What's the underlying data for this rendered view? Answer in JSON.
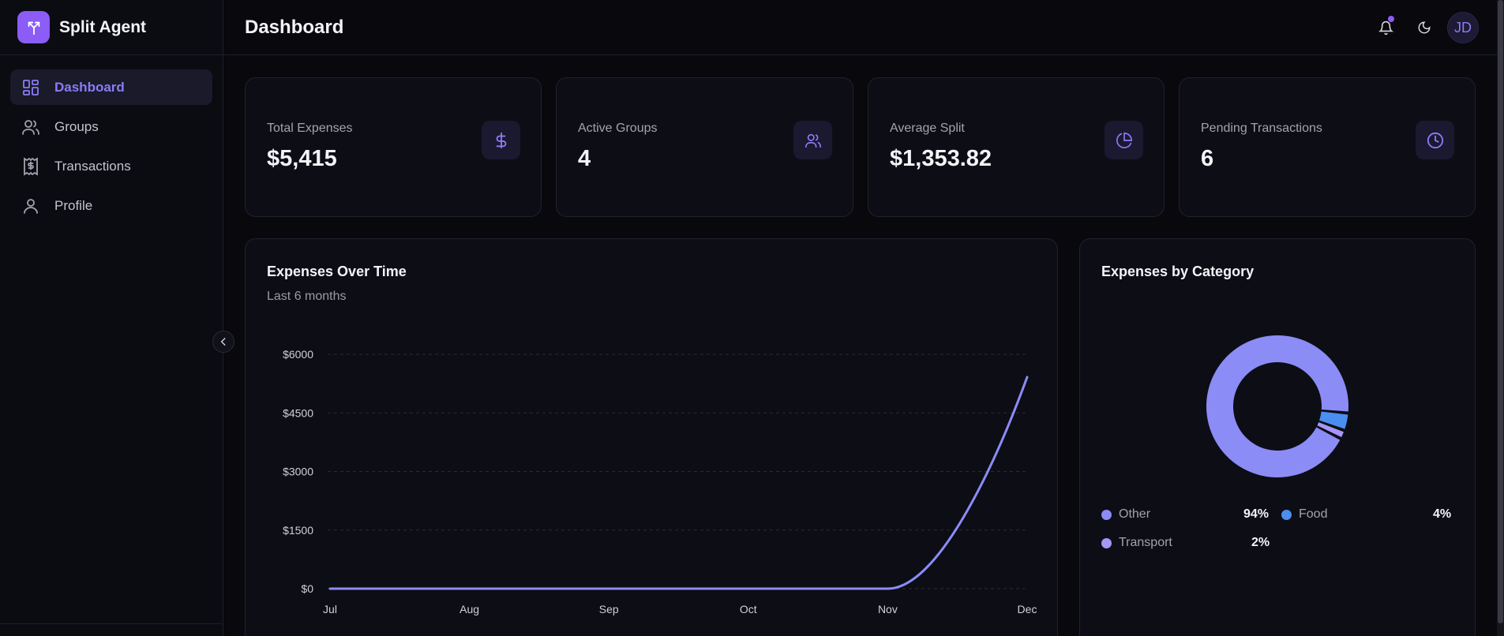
{
  "app": {
    "name": "Split Agent",
    "accent": "#8b5cf6"
  },
  "sidebar": {
    "items": [
      {
        "label": "Dashboard",
        "icon": "dashboard-icon",
        "active": true
      },
      {
        "label": "Groups",
        "icon": "users-icon",
        "active": false
      },
      {
        "label": "Transactions",
        "icon": "receipt-icon",
        "active": false
      },
      {
        "label": "Profile",
        "icon": "user-icon",
        "active": false
      }
    ]
  },
  "header": {
    "title": "Dashboard",
    "avatar_initials": "JD",
    "has_notification": true
  },
  "stats": [
    {
      "label": "Total Expenses",
      "value": "$5,415",
      "icon": "dollar-icon"
    },
    {
      "label": "Active Groups",
      "value": "4",
      "icon": "users-icon"
    },
    {
      "label": "Average Split",
      "value": "$1,353.82",
      "icon": "pie-chart-icon"
    },
    {
      "label": "Pending Transactions",
      "value": "6",
      "icon": "clock-icon"
    }
  ],
  "expenses_chart": {
    "title": "Expenses Over Time",
    "subtitle": "Last 6 months"
  },
  "category_chart": {
    "title": "Expenses by Category",
    "legend": [
      {
        "name": "Other",
        "percent": "94%",
        "color": "#8b8cf6"
      },
      {
        "name": "Food",
        "percent": "4%",
        "color": "#4a8ef0"
      },
      {
        "name": "Transport",
        "percent": "2%",
        "color": "#a796f8"
      }
    ]
  },
  "chart_data": [
    {
      "type": "area",
      "title": "Expenses Over Time",
      "subtitle": "Last 6 months",
      "categories": [
        "Jul",
        "Aug",
        "Sep",
        "Oct",
        "Nov",
        "Dec"
      ],
      "values": [
        0,
        0,
        0,
        0,
        0,
        5415
      ],
      "y_ticks": [
        0,
        1500,
        3000,
        4500,
        6000
      ],
      "y_tick_labels": [
        "$0",
        "$1500",
        "$3000",
        "$4500",
        "$6000"
      ],
      "ylim": [
        0,
        6000
      ],
      "grid": true,
      "color": "#8b8cf6"
    },
    {
      "type": "pie",
      "title": "Expenses by Category",
      "labels": [
        "Other",
        "Food",
        "Transport"
      ],
      "values": [
        94,
        4,
        2
      ],
      "colors": [
        "#8b8cf6",
        "#4a8ef0",
        "#a796f8"
      ],
      "donut": true
    }
  ]
}
